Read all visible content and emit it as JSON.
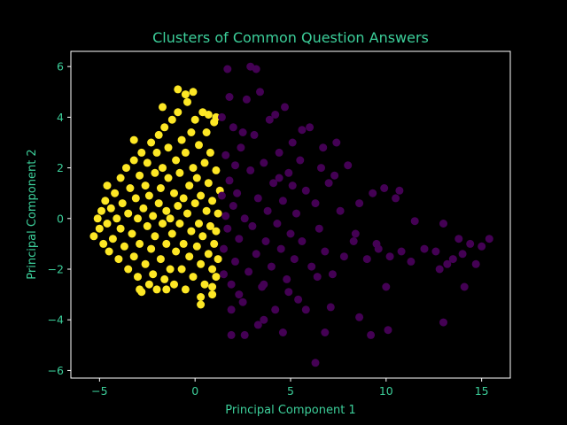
{
  "chart_data": {
    "type": "scatter",
    "title": "Clusters of Common Question Answers",
    "xlabel": "Principal Component 1",
    "ylabel": "Principal Component 2",
    "xlim": [
      -6.5,
      16.5
    ],
    "ylim": [
      -6.3,
      6.6
    ],
    "xticks": [
      -5,
      0,
      5,
      10,
      15
    ],
    "yticks": [
      -6,
      -4,
      -2,
      0,
      2,
      4,
      6
    ],
    "grid": false,
    "legend": "none",
    "text_color": "#3ccf9a",
    "background": "#000000",
    "series": [
      {
        "color": "#fde725",
        "points": [
          [
            -5.3,
            -0.7
          ],
          [
            -5.1,
            0.0
          ],
          [
            -5.0,
            -0.4
          ],
          [
            -4.9,
            0.3
          ],
          [
            -4.8,
            -1.0
          ],
          [
            -4.7,
            0.7
          ],
          [
            -4.6,
            -0.2
          ],
          [
            -4.6,
            1.3
          ],
          [
            -4.5,
            -1.3
          ],
          [
            -4.4,
            0.4
          ],
          [
            -4.3,
            -0.8
          ],
          [
            -4.2,
            1.0
          ],
          [
            -4.1,
            0.0
          ],
          [
            -4.0,
            -1.6
          ],
          [
            -3.9,
            1.6
          ],
          [
            -3.9,
            -0.4
          ],
          [
            -3.8,
            0.6
          ],
          [
            -3.7,
            -1.1
          ],
          [
            -3.6,
            2.0
          ],
          [
            -3.5,
            0.2
          ],
          [
            -3.5,
            -2.0
          ],
          [
            -3.4,
            1.2
          ],
          [
            -3.3,
            -0.6
          ],
          [
            -3.2,
            2.3
          ],
          [
            -3.2,
            -1.5
          ],
          [
            -3.1,
            0.8
          ],
          [
            -3.0,
            -2.3
          ],
          [
            -3.0,
            0.0
          ],
          [
            -2.9,
            1.7
          ],
          [
            -2.9,
            -1.0
          ],
          [
            -2.8,
            2.6
          ],
          [
            -2.8,
            -2.9
          ],
          [
            -2.7,
            0.4
          ],
          [
            -2.6,
            -1.8
          ],
          [
            -2.6,
            1.3
          ],
          [
            -2.5,
            -0.3
          ],
          [
            -2.5,
            2.2
          ],
          [
            -2.4,
            -2.6
          ],
          [
            -2.4,
            0.9
          ],
          [
            -2.3,
            -1.2
          ],
          [
            -2.3,
            3.0
          ],
          [
            -2.2,
            0.1
          ],
          [
            -2.2,
            -2.2
          ],
          [
            -2.1,
            1.8
          ],
          [
            -2.1,
            -0.7
          ],
          [
            -2.0,
            2.6
          ],
          [
            -2.0,
            -2.8
          ],
          [
            -1.9,
            0.6
          ],
          [
            -1.9,
            3.3
          ],
          [
            -1.8,
            -1.6
          ],
          [
            -1.8,
            1.2
          ],
          [
            -1.7,
            -0.2
          ],
          [
            -1.7,
            2.0
          ],
          [
            -1.6,
            -2.4
          ],
          [
            -1.6,
            3.6
          ],
          [
            -1.5,
            0.3
          ],
          [
            -1.5,
            -1.0
          ],
          [
            -1.4,
            1.6
          ],
          [
            -1.4,
            2.8
          ],
          [
            -1.3,
            -2.0
          ],
          [
            -1.3,
            0.0
          ],
          [
            -1.2,
            3.9
          ],
          [
            -1.2,
            -0.6
          ],
          [
            -1.1,
            1.0
          ],
          [
            -1.1,
            -2.6
          ],
          [
            -1.0,
            2.3
          ],
          [
            -1.0,
            -1.3
          ],
          [
            -0.9,
            0.5
          ],
          [
            -0.9,
            4.2
          ],
          [
            -0.8,
            -0.2
          ],
          [
            -0.8,
            1.8
          ],
          [
            -0.7,
            -2.0
          ],
          [
            -0.7,
            3.1
          ],
          [
            -0.6,
            0.8
          ],
          [
            -0.6,
            -1.0
          ],
          [
            -0.5,
            2.6
          ],
          [
            -0.5,
            -2.8
          ],
          [
            -0.4,
            0.2
          ],
          [
            -0.4,
            4.6
          ],
          [
            -0.3,
            -1.5
          ],
          [
            -0.3,
            1.3
          ],
          [
            -0.2,
            3.4
          ],
          [
            -0.2,
            -0.5
          ],
          [
            -0.1,
            2.0
          ],
          [
            -0.1,
            -2.3
          ],
          [
            0.0,
            0.6
          ],
          [
            0.0,
            3.9
          ],
          [
            0.1,
            -1.1
          ],
          [
            0.1,
            1.6
          ],
          [
            0.2,
            -0.2
          ],
          [
            0.2,
            2.9
          ],
          [
            0.3,
            -1.8
          ],
          [
            0.3,
            0.9
          ],
          [
            0.4,
            4.2
          ],
          [
            0.4,
            -0.7
          ],
          [
            0.5,
            2.2
          ],
          [
            0.5,
            -2.6
          ],
          [
            0.6,
            0.3
          ],
          [
            0.6,
            3.4
          ],
          [
            0.7,
            -1.4
          ],
          [
            0.7,
            1.4
          ],
          [
            0.8,
            -0.3
          ],
          [
            0.8,
            2.6
          ],
          [
            0.9,
            -2.0
          ],
          [
            0.9,
            0.7
          ],
          [
            1.0,
            3.8
          ],
          [
            1.0,
            -1.0
          ],
          [
            1.1,
            1.9
          ],
          [
            1.1,
            -0.5
          ],
          [
            1.2,
            0.2
          ],
          [
            1.2,
            -1.6
          ],
          [
            1.3,
            1.1
          ],
          [
            -0.9,
            5.1
          ],
          [
            -0.5,
            4.9
          ],
          [
            -0.1,
            5.0
          ],
          [
            0.3,
            -3.1
          ],
          [
            0.3,
            -3.4
          ],
          [
            0.9,
            -3.0
          ],
          [
            -1.5,
            -2.8
          ],
          [
            -2.9,
            -2.8
          ],
          [
            -3.2,
            3.1
          ],
          [
            -1.7,
            4.4
          ],
          [
            0.7,
            4.1
          ],
          [
            0.9,
            -2.7
          ],
          [
            1.1,
            4.0
          ],
          [
            1.1,
            -2.3
          ]
        ]
      },
      {
        "color": "#440154",
        "points": [
          [
            1.4,
            4.0
          ],
          [
            1.5,
            -1.2
          ],
          [
            1.6,
            2.5
          ],
          [
            1.7,
            -0.4
          ],
          [
            1.8,
            1.5
          ],
          [
            1.9,
            -2.6
          ],
          [
            2.0,
            0.5
          ],
          [
            2.0,
            3.6
          ],
          [
            2.1,
            -1.7
          ],
          [
            2.2,
            1.0
          ],
          [
            2.3,
            -0.8
          ],
          [
            2.4,
            2.8
          ],
          [
            2.5,
            -3.3
          ],
          [
            2.6,
            0.0
          ],
          [
            2.7,
            4.7
          ],
          [
            2.8,
            -2.1
          ],
          [
            2.9,
            1.9
          ],
          [
            3.0,
            -0.3
          ],
          [
            3.1,
            3.3
          ],
          [
            3.2,
            -1.4
          ],
          [
            3.3,
            0.8
          ],
          [
            3.4,
            5.0
          ],
          [
            3.5,
            -2.7
          ],
          [
            3.6,
            2.2
          ],
          [
            3.7,
            -0.9
          ],
          [
            3.8,
            0.3
          ],
          [
            3.9,
            3.9
          ],
          [
            4.0,
            -1.9
          ],
          [
            4.1,
            1.4
          ],
          [
            4.2,
            -3.6
          ],
          [
            4.3,
            -0.2
          ],
          [
            4.4,
            2.6
          ],
          [
            4.5,
            -1.2
          ],
          [
            4.6,
            0.7
          ],
          [
            4.7,
            4.4
          ],
          [
            4.8,
            -2.4
          ],
          [
            4.9,
            1.8
          ],
          [
            5.0,
            -0.6
          ],
          [
            5.1,
            3.0
          ],
          [
            5.2,
            -1.6
          ],
          [
            5.3,
            0.2
          ],
          [
            5.4,
            -3.2
          ],
          [
            5.5,
            2.3
          ],
          [
            5.6,
            -0.9
          ],
          [
            5.8,
            1.1
          ],
          [
            6.0,
            3.6
          ],
          [
            6.1,
            -1.9
          ],
          [
            6.3,
            0.6
          ],
          [
            6.5,
            -0.4
          ],
          [
            6.6,
            2.0
          ],
          [
            6.8,
            -1.3
          ],
          [
            7.0,
            1.4
          ],
          [
            7.2,
            -2.2
          ],
          [
            7.4,
            3.0
          ],
          [
            7.6,
            0.3
          ],
          [
            7.8,
            -1.5
          ],
          [
            8.0,
            2.1
          ],
          [
            8.3,
            -0.9
          ],
          [
            8.6,
            0.6
          ],
          [
            9.0,
            -1.6
          ],
          [
            9.3,
            1.0
          ],
          [
            9.6,
            -1.2
          ],
          [
            9.9,
            1.2
          ],
          [
            10.2,
            -1.5
          ],
          [
            10.5,
            0.8
          ],
          [
            10.8,
            -1.3
          ],
          [
            11.5,
            -0.1
          ],
          [
            12.0,
            -1.2
          ],
          [
            12.6,
            -1.3
          ],
          [
            13.0,
            -0.2
          ],
          [
            13.2,
            -1.8
          ],
          [
            13.5,
            -1.6
          ],
          [
            13.8,
            -0.8
          ],
          [
            14.1,
            -2.7
          ],
          [
            14.4,
            -1.0
          ],
          [
            14.7,
            -1.8
          ],
          [
            15.0,
            -1.1
          ],
          [
            15.4,
            -0.8
          ],
          [
            2.6,
            -4.6
          ],
          [
            3.3,
            -4.2
          ],
          [
            4.6,
            -4.5
          ],
          [
            6.3,
            -5.7
          ],
          [
            1.9,
            -4.6
          ],
          [
            6.8,
            -4.5
          ],
          [
            9.2,
            -4.6
          ],
          [
            13.0,
            -4.1
          ],
          [
            1.7,
            5.9
          ],
          [
            2.9,
            6.0
          ],
          [
            3.2,
            5.9
          ],
          [
            1.4,
            0.9
          ],
          [
            1.5,
            -2.2
          ],
          [
            2.1,
            2.1
          ],
          [
            1.8,
            4.8
          ],
          [
            4.2,
            4.1
          ],
          [
            5.8,
            -3.6
          ],
          [
            7.1,
            -3.5
          ],
          [
            8.6,
            -3.9
          ],
          [
            10.1,
            -4.4
          ],
          [
            10.0,
            -2.7
          ],
          [
            11.3,
            -1.7
          ],
          [
            12.8,
            -2.0
          ],
          [
            14.0,
            -1.4
          ],
          [
            1.9,
            -3.6
          ],
          [
            2.3,
            -3.0
          ],
          [
            3.6,
            -4.0
          ],
          [
            4.9,
            -2.9
          ],
          [
            6.4,
            -2.3
          ],
          [
            5.1,
            1.3
          ],
          [
            5.6,
            3.5
          ],
          [
            6.7,
            2.8
          ],
          [
            7.3,
            1.7
          ],
          [
            8.4,
            -0.6
          ],
          [
            9.5,
            -1.0
          ],
          [
            10.7,
            1.1
          ],
          [
            2.5,
            3.4
          ],
          [
            3.6,
            -2.6
          ],
          [
            4.4,
            1.6
          ],
          [
            1.6,
            0.1
          ]
        ]
      }
    ]
  }
}
